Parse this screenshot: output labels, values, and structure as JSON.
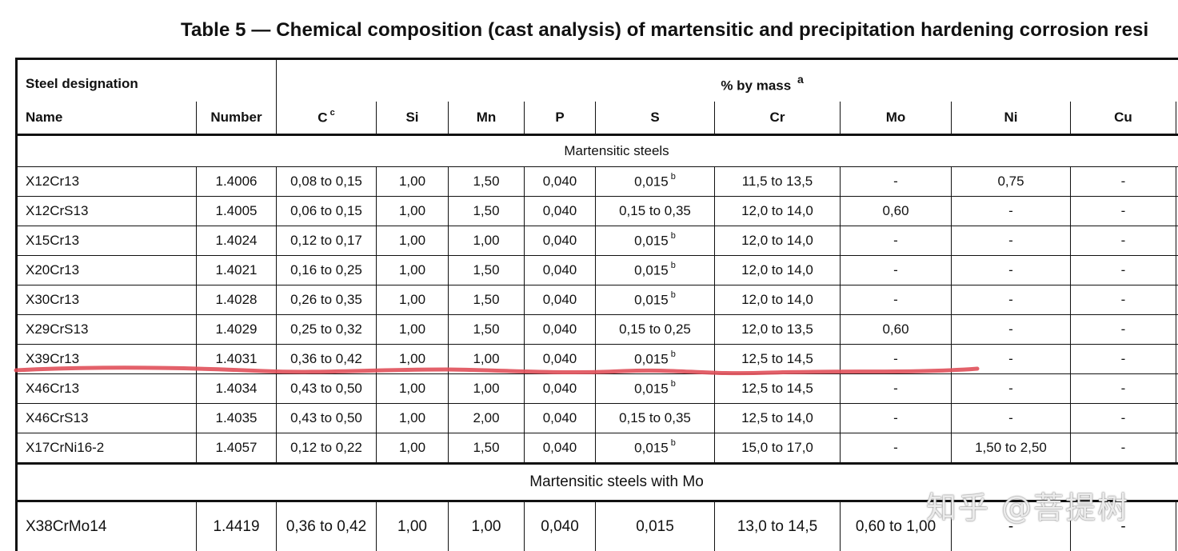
{
  "title": "Table 5 — Chemical composition (cast analysis) of martensitic and precipitation hardening corrosion resi",
  "header": {
    "steel_designation": "Steel designation",
    "by_mass": "% by mass",
    "by_mass_sup": "a",
    "name": "Name",
    "number": "Number",
    "c": "C",
    "c_sup": "c",
    "si": "Si",
    "mn": "Mn",
    "p": "P",
    "s": "S",
    "cr": "Cr",
    "mo": "Mo",
    "ni": "Ni",
    "cu": "Cu"
  },
  "sections": [
    {
      "label": "Martensitic steels",
      "rows": [
        {
          "name": "X12Cr13",
          "number": "1.4006",
          "c": "0,08 to 0,15",
          "si": "1,00",
          "mn": "1,50",
          "p": "0,040",
          "s": "0,015",
          "s_sup": "b",
          "cr": "11,5 to 13,5",
          "mo": "-",
          "ni": "0,75",
          "cu": "-"
        },
        {
          "name": "X12CrS13",
          "number": "1.4005",
          "c": "0,06 to 0,15",
          "si": "1,00",
          "mn": "1,50",
          "p": "0,040",
          "s": "0,15 to 0,35",
          "s_sup": "",
          "cr": "12,0 to 14,0",
          "mo": "0,60",
          "ni": "-",
          "cu": "-"
        },
        {
          "name": "X15Cr13",
          "number": "1.4024",
          "c": "0,12 to 0,17",
          "si": "1,00",
          "mn": "1,00",
          "p": "0,040",
          "s": "0,015",
          "s_sup": "b",
          "cr": "12,0 to 14,0",
          "mo": "-",
          "ni": "-",
          "cu": "-"
        },
        {
          "name": "X20Cr13",
          "number": "1.4021",
          "c": "0,16 to 0,25",
          "si": "1,00",
          "mn": "1,50",
          "p": "0,040",
          "s": "0,015",
          "s_sup": "b",
          "cr": "12,0 to 14,0",
          "mo": "-",
          "ni": "-",
          "cu": "-"
        },
        {
          "name": "X30Cr13",
          "number": "1.4028",
          "c": "0,26 to 0,35",
          "si": "1,00",
          "mn": "1,50",
          "p": "0,040",
          "s": "0,015",
          "s_sup": "b",
          "cr": "12,0 to 14,0",
          "mo": "-",
          "ni": "-",
          "cu": "-"
        },
        {
          "name": "X29CrS13",
          "number": "1.4029",
          "c": "0,25 to 0,32",
          "si": "1,00",
          "mn": "1,50",
          "p": "0,040",
          "s": "0,15 to 0,25",
          "s_sup": "",
          "cr": "12,0 to 13,5",
          "mo": "0,60",
          "ni": "-",
          "cu": "-"
        },
        {
          "name": "X39Cr13",
          "number": "1.4031",
          "c": "0,36 to 0,42",
          "si": "1,00",
          "mn": "1,00",
          "p": "0,040",
          "s": "0,015",
          "s_sup": "b",
          "cr": "12,5 to 14,5",
          "mo": "-",
          "ni": "-",
          "cu": "-"
        },
        {
          "name": "X46Cr13",
          "number": "1.4034",
          "c": "0,43 to 0,50",
          "si": "1,00",
          "mn": "1,00",
          "p": "0,040",
          "s": "0,015",
          "s_sup": "b",
          "cr": "12,5 to 14,5",
          "mo": "-",
          "ni": "-",
          "cu": "-"
        },
        {
          "name": "X46CrS13",
          "number": "1.4035",
          "c": "0,43 to 0,50",
          "si": "1,00",
          "mn": "2,00",
          "p": "0,040",
          "s": "0,15 to 0,35",
          "s_sup": "",
          "cr": "12,5 to 14,0",
          "mo": "-",
          "ni": "-",
          "cu": "-"
        },
        {
          "name": "X17CrNi16-2",
          "number": "1.4057",
          "c": "0,12 to 0,22",
          "si": "1,00",
          "mn": "1,50",
          "p": "0,040",
          "s": "0,015",
          "s_sup": "b",
          "cr": "15,0 to 17,0",
          "mo": "-",
          "ni": "1,50 to 2,50",
          "cu": "-"
        }
      ]
    },
    {
      "label": "Martensitic steels with Mo",
      "rows": [
        {
          "name": "X38CrMo14",
          "number": "1.4419",
          "c": "0,36 to 0,42",
          "si": "1,00",
          "mn": "1,00",
          "p": "0,040",
          "s": "0,015",
          "s_sup": "",
          "cr": "13,0 to 14,5",
          "mo": "0,60 to 1,00",
          "ni": "-",
          "cu": "-"
        }
      ]
    }
  ],
  "watermark": "知乎 @菩提树",
  "annotation_color": "#e0505a"
}
